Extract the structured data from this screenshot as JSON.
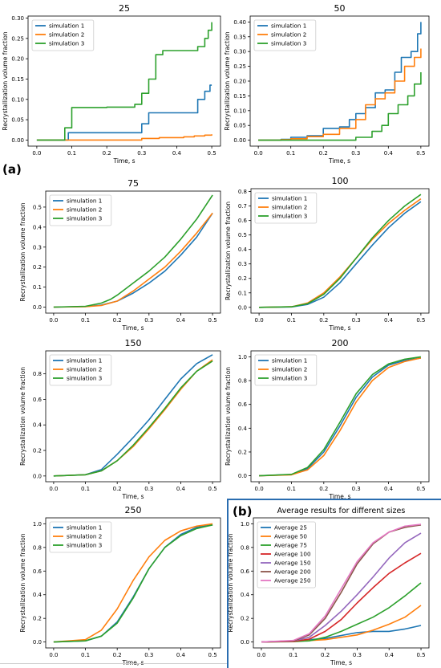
{
  "panel_labels": {
    "a": "(a)",
    "b": "(b)"
  },
  "colors": {
    "sim1": "#1f77b4",
    "sim2": "#ff7f0e",
    "sim3": "#2ca02c",
    "avg25": "#1f77b4",
    "avg50": "#ff7f0e",
    "avg75": "#2ca02c",
    "avg100": "#d62728",
    "avg150": "#9467bd",
    "avg200": "#8c564b",
    "avg250": "#e377c2"
  },
  "chart_data": [
    {
      "type": "line",
      "title": "25",
      "xlabel": "Time, s",
      "ylabel": "Recrystallization volume fraction",
      "xlim": [
        -0.025,
        0.525
      ],
      "ylim": [
        -0.015,
        0.305
      ],
      "xticks": [
        "0.0",
        "0.1",
        "0.2",
        "0.3",
        "0.4",
        "0.5"
      ],
      "yticks": [
        "0.00",
        "0.05",
        "0.10",
        "0.15",
        "0.20",
        "0.25",
        "0.30"
      ],
      "legend": "top-left",
      "series": [
        {
          "name": "simulation 1",
          "color_key": "sim1",
          "step": true,
          "x": [
            0,
            0.07,
            0.09,
            0.29,
            0.3,
            0.32,
            0.45,
            0.46,
            0.48,
            0.495,
            0.5
          ],
          "y": [
            0,
            0,
            0.018,
            0.018,
            0.04,
            0.067,
            0.067,
            0.1,
            0.12,
            0.135,
            0.135
          ]
        },
        {
          "name": "simulation 2",
          "color_key": "sim2",
          "step": true,
          "x": [
            0,
            0.2,
            0.3,
            0.35,
            0.42,
            0.45,
            0.48,
            0.5
          ],
          "y": [
            0,
            0,
            0.004,
            0.006,
            0.008,
            0.01,
            0.012,
            0.014
          ]
        },
        {
          "name": "simulation 3",
          "color_key": "sim3",
          "step": true,
          "x": [
            0,
            0.06,
            0.08,
            0.1,
            0.2,
            0.28,
            0.3,
            0.32,
            0.34,
            0.36,
            0.38,
            0.46,
            0.48,
            0.49,
            0.5
          ],
          "y": [
            0,
            0,
            0.03,
            0.08,
            0.081,
            0.088,
            0.115,
            0.15,
            0.21,
            0.22,
            0.22,
            0.23,
            0.25,
            0.27,
            0.29
          ]
        }
      ]
    },
    {
      "type": "line",
      "title": "50",
      "xlabel": "Time, s",
      "ylabel": "Recrystallization volume fraction",
      "xlim": [
        -0.025,
        0.525
      ],
      "ylim": [
        -0.02,
        0.42
      ],
      "xticks": [
        "0.0",
        "0.1",
        "0.2",
        "0.3",
        "0.4",
        "0.5"
      ],
      "yticks": [
        "0.00",
        "0.05",
        "0.10",
        "0.15",
        "0.20",
        "0.25",
        "0.30",
        "0.35",
        "0.40"
      ],
      "legend": "top-left",
      "series": [
        {
          "name": "simulation 1",
          "color_key": "sim1",
          "step": true,
          "x": [
            0,
            0.07,
            0.1,
            0.15,
            0.2,
            0.25,
            0.28,
            0.3,
            0.33,
            0.36,
            0.39,
            0.42,
            0.44,
            0.47,
            0.49,
            0.5
          ],
          "y": [
            0,
            0.003,
            0.01,
            0.015,
            0.04,
            0.045,
            0.07,
            0.09,
            0.11,
            0.16,
            0.17,
            0.23,
            0.28,
            0.3,
            0.36,
            0.4
          ]
        },
        {
          "name": "simulation 2",
          "color_key": "sim2",
          "step": true,
          "x": [
            0,
            0.07,
            0.1,
            0.15,
            0.2,
            0.25,
            0.3,
            0.33,
            0.36,
            0.39,
            0.42,
            0.45,
            0.48,
            0.5
          ],
          "y": [
            0,
            0.002,
            0.005,
            0.012,
            0.02,
            0.04,
            0.07,
            0.12,
            0.14,
            0.16,
            0.2,
            0.25,
            0.28,
            0.31
          ]
        },
        {
          "name": "simulation 3",
          "color_key": "sim3",
          "step": true,
          "x": [
            0,
            0.28,
            0.3,
            0.35,
            0.38,
            0.4,
            0.43,
            0.46,
            0.48,
            0.5
          ],
          "y": [
            0,
            0,
            0.01,
            0.03,
            0.05,
            0.09,
            0.12,
            0.15,
            0.19,
            0.23
          ]
        }
      ]
    },
    {
      "type": "line",
      "title": "75",
      "xlabel": "Time, s",
      "ylabel": "Recrystallization volume fraction",
      "xlim": [
        -0.025,
        0.525
      ],
      "ylim": [
        -0.03,
        0.58
      ],
      "xticks": [
        "0.0",
        "0.1",
        "0.2",
        "0.3",
        "0.4",
        "0.5"
      ],
      "yticks": [
        "0.0",
        "0.1",
        "0.2",
        "0.3",
        "0.4",
        "0.5"
      ],
      "legend": "top-left",
      "series": [
        {
          "name": "simulation 1",
          "color_key": "sim1",
          "x": [
            0,
            0.1,
            0.15,
            0.2,
            0.25,
            0.3,
            0.35,
            0.4,
            0.45,
            0.5
          ],
          "y": [
            0,
            0.003,
            0.01,
            0.03,
            0.07,
            0.12,
            0.18,
            0.26,
            0.35,
            0.47
          ]
        },
        {
          "name": "simulation 2",
          "color_key": "sim2",
          "x": [
            0,
            0.1,
            0.15,
            0.2,
            0.25,
            0.3,
            0.35,
            0.4,
            0.45,
            0.5
          ],
          "y": [
            0,
            0.002,
            0.008,
            0.03,
            0.08,
            0.14,
            0.2,
            0.28,
            0.37,
            0.47
          ]
        },
        {
          "name": "simulation 3",
          "color_key": "sim3",
          "x": [
            0,
            0.1,
            0.15,
            0.18,
            0.2,
            0.25,
            0.3,
            0.35,
            0.4,
            0.45,
            0.5
          ],
          "y": [
            0,
            0.004,
            0.02,
            0.04,
            0.06,
            0.12,
            0.18,
            0.25,
            0.34,
            0.44,
            0.56
          ]
        }
      ]
    },
    {
      "type": "line",
      "title": "100",
      "xlabel": "Time, s",
      "ylabel": "Recrystallization volume fraction",
      "xlim": [
        -0.025,
        0.525
      ],
      "ylim": [
        -0.04,
        0.82
      ],
      "xticks": [
        "0.0",
        "0.1",
        "0.2",
        "0.3",
        "0.4",
        "0.5"
      ],
      "yticks": [
        "0.0",
        "0.1",
        "0.2",
        "0.3",
        "0.4",
        "0.5",
        "0.6",
        "0.7",
        "0.8"
      ],
      "legend": "top-left",
      "series": [
        {
          "name": "simulation 1",
          "color_key": "sim1",
          "x": [
            0,
            0.1,
            0.15,
            0.2,
            0.25,
            0.3,
            0.35,
            0.4,
            0.45,
            0.5
          ],
          "y": [
            0,
            0.003,
            0.02,
            0.07,
            0.17,
            0.3,
            0.43,
            0.55,
            0.65,
            0.73
          ]
        },
        {
          "name": "simulation 2",
          "color_key": "sim2",
          "x": [
            0,
            0.1,
            0.15,
            0.2,
            0.25,
            0.3,
            0.35,
            0.4,
            0.45,
            0.5
          ],
          "y": [
            0,
            0.004,
            0.03,
            0.1,
            0.21,
            0.34,
            0.47,
            0.58,
            0.67,
            0.75
          ]
        },
        {
          "name": "simulation 3",
          "color_key": "sim3",
          "x": [
            0,
            0.1,
            0.15,
            0.2,
            0.25,
            0.3,
            0.35,
            0.4,
            0.45,
            0.5
          ],
          "y": [
            0,
            0.004,
            0.025,
            0.09,
            0.2,
            0.34,
            0.48,
            0.6,
            0.7,
            0.78
          ]
        }
      ]
    },
    {
      "type": "line",
      "title": "150",
      "xlabel": "Time, s",
      "ylabel": "Recrystallization volume fraction",
      "xlim": [
        -0.025,
        0.525
      ],
      "ylim": [
        -0.045,
        0.98
      ],
      "xticks": [
        "0.0",
        "0.1",
        "0.2",
        "0.3",
        "0.4",
        "0.5"
      ],
      "yticks": [
        "0.0",
        "0.2",
        "0.4",
        "0.6",
        "0.8"
      ],
      "legend": "top-left",
      "series": [
        {
          "name": "simulation 1",
          "color_key": "sim1",
          "x": [
            0,
            0.1,
            0.15,
            0.2,
            0.25,
            0.3,
            0.35,
            0.4,
            0.45,
            0.5
          ],
          "y": [
            0,
            0.01,
            0.05,
            0.17,
            0.3,
            0.44,
            0.6,
            0.76,
            0.88,
            0.95
          ]
        },
        {
          "name": "simulation 2",
          "color_key": "sim2",
          "x": [
            0,
            0.1,
            0.15,
            0.2,
            0.25,
            0.3,
            0.35,
            0.4,
            0.45,
            0.5
          ],
          "y": [
            0,
            0.01,
            0.04,
            0.12,
            0.23,
            0.37,
            0.52,
            0.68,
            0.82,
            0.91
          ]
        },
        {
          "name": "simulation 3",
          "color_key": "sim3",
          "x": [
            0,
            0.1,
            0.15,
            0.2,
            0.25,
            0.3,
            0.35,
            0.4,
            0.45,
            0.5
          ],
          "y": [
            0,
            0.01,
            0.04,
            0.12,
            0.24,
            0.38,
            0.53,
            0.69,
            0.82,
            0.9
          ]
        }
      ]
    },
    {
      "type": "line",
      "title": "200",
      "xlabel": "Time, s",
      "ylabel": "Recrystallization volume fraction",
      "xlim": [
        -0.025,
        0.525
      ],
      "ylim": [
        -0.05,
        1.05
      ],
      "xticks": [
        "0.0",
        "0.1",
        "0.2",
        "0.3",
        "0.4",
        "0.5"
      ],
      "yticks": [
        "0.0",
        "0.2",
        "0.4",
        "0.6",
        "0.8",
        "1.0"
      ],
      "legend": "top-left",
      "series": [
        {
          "name": "simulation 1",
          "color_key": "sim1",
          "x": [
            0,
            0.1,
            0.15,
            0.2,
            0.25,
            0.3,
            0.35,
            0.4,
            0.45,
            0.5
          ],
          "y": [
            0,
            0.01,
            0.06,
            0.2,
            0.42,
            0.66,
            0.83,
            0.93,
            0.97,
            0.99
          ]
        },
        {
          "name": "simulation 2",
          "color_key": "sim2",
          "x": [
            0,
            0.1,
            0.15,
            0.2,
            0.25,
            0.3,
            0.35,
            0.4,
            0.45,
            0.5
          ],
          "y": [
            0,
            0.008,
            0.05,
            0.17,
            0.38,
            0.62,
            0.8,
            0.91,
            0.96,
            0.99
          ]
        },
        {
          "name": "simulation 3",
          "color_key": "sim3",
          "x": [
            0,
            0.1,
            0.15,
            0.2,
            0.25,
            0.3,
            0.35,
            0.4,
            0.45,
            0.5
          ],
          "y": [
            0,
            0.012,
            0.07,
            0.22,
            0.45,
            0.69,
            0.85,
            0.94,
            0.98,
            1.0
          ]
        }
      ]
    },
    {
      "type": "line",
      "title": "250",
      "xlabel": "Time, s",
      "ylabel": "Recrystallization volume fraction",
      "xlim": [
        -0.025,
        0.525
      ],
      "ylim": [
        -0.05,
        1.05
      ],
      "xticks": [
        "0.0",
        "0.1",
        "0.2",
        "0.3",
        "0.4",
        "0.5"
      ],
      "yticks": [
        "0.0",
        "0.2",
        "0.4",
        "0.6",
        "0.8",
        "1.0"
      ],
      "legend": "top-left",
      "series": [
        {
          "name": "simulation 1",
          "color_key": "sim1",
          "x": [
            0,
            0.1,
            0.15,
            0.2,
            0.25,
            0.3,
            0.35,
            0.4,
            0.45,
            0.5
          ],
          "y": [
            0,
            0.01,
            0.05,
            0.17,
            0.38,
            0.62,
            0.8,
            0.91,
            0.97,
            0.99
          ]
        },
        {
          "name": "simulation 2",
          "color_key": "sim2",
          "x": [
            0,
            0.1,
            0.15,
            0.2,
            0.25,
            0.3,
            0.35,
            0.4,
            0.45,
            0.5
          ],
          "y": [
            0,
            0.02,
            0.1,
            0.28,
            0.52,
            0.72,
            0.86,
            0.94,
            0.98,
            1.0
          ]
        },
        {
          "name": "simulation 3",
          "color_key": "sim3",
          "x": [
            0,
            0.1,
            0.15,
            0.2,
            0.25,
            0.3,
            0.35,
            0.4,
            0.45,
            0.5
          ],
          "y": [
            0,
            0.01,
            0.05,
            0.16,
            0.37,
            0.62,
            0.8,
            0.9,
            0.96,
            0.99
          ]
        }
      ]
    },
    {
      "type": "line",
      "title": "Average results for different sizes",
      "xlabel": "Time, s",
      "ylabel": "Recrystallization volume fraction",
      "xlim": [
        -0.025,
        0.525
      ],
      "ylim": [
        -0.05,
        1.05
      ],
      "xticks": [
        "0.0",
        "0.1",
        "0.2",
        "0.3",
        "0.4",
        "0.5"
      ],
      "yticks": [
        "0.0",
        "0.2",
        "0.4",
        "0.6",
        "0.8",
        "1.0"
      ],
      "legend": "top-left",
      "series": [
        {
          "name": "Average 25",
          "color_key": "avg25",
          "x": [
            0,
            0.1,
            0.2,
            0.3,
            0.35,
            0.4,
            0.45,
            0.5
          ],
          "y": [
            0,
            0.01,
            0.03,
            0.08,
            0.09,
            0.09,
            0.11,
            0.14
          ]
        },
        {
          "name": "Average 50",
          "color_key": "avg50",
          "x": [
            0,
            0.1,
            0.2,
            0.3,
            0.35,
            0.4,
            0.45,
            0.5
          ],
          "y": [
            0,
            0.005,
            0.02,
            0.06,
            0.1,
            0.15,
            0.21,
            0.31
          ]
        },
        {
          "name": "Average 75",
          "color_key": "avg75",
          "x": [
            0,
            0.1,
            0.15,
            0.2,
            0.25,
            0.3,
            0.35,
            0.4,
            0.45,
            0.5
          ],
          "y": [
            0,
            0.003,
            0.01,
            0.04,
            0.09,
            0.15,
            0.21,
            0.29,
            0.39,
            0.5
          ]
        },
        {
          "name": "Average 100",
          "color_key": "avg100",
          "x": [
            0,
            0.1,
            0.15,
            0.2,
            0.25,
            0.3,
            0.35,
            0.4,
            0.45,
            0.5
          ],
          "y": [
            0,
            0.004,
            0.025,
            0.09,
            0.19,
            0.33,
            0.46,
            0.58,
            0.67,
            0.75
          ]
        },
        {
          "name": "Average 150",
          "color_key": "avg150",
          "x": [
            0,
            0.1,
            0.15,
            0.2,
            0.25,
            0.3,
            0.35,
            0.4,
            0.45,
            0.5
          ],
          "y": [
            0,
            0.01,
            0.04,
            0.14,
            0.26,
            0.4,
            0.55,
            0.71,
            0.84,
            0.92
          ]
        },
        {
          "name": "Average 200",
          "color_key": "avg200",
          "x": [
            0,
            0.1,
            0.15,
            0.2,
            0.25,
            0.3,
            0.35,
            0.4,
            0.45,
            0.5
          ],
          "y": [
            0,
            0.01,
            0.06,
            0.2,
            0.42,
            0.66,
            0.83,
            0.93,
            0.97,
            0.99
          ]
        },
        {
          "name": "Average 250",
          "color_key": "avg250",
          "x": [
            0,
            0.1,
            0.15,
            0.2,
            0.25,
            0.3,
            0.35,
            0.4,
            0.45,
            0.5
          ],
          "y": [
            0,
            0.013,
            0.07,
            0.22,
            0.45,
            0.68,
            0.84,
            0.93,
            0.98,
            0.995
          ]
        }
      ]
    }
  ]
}
